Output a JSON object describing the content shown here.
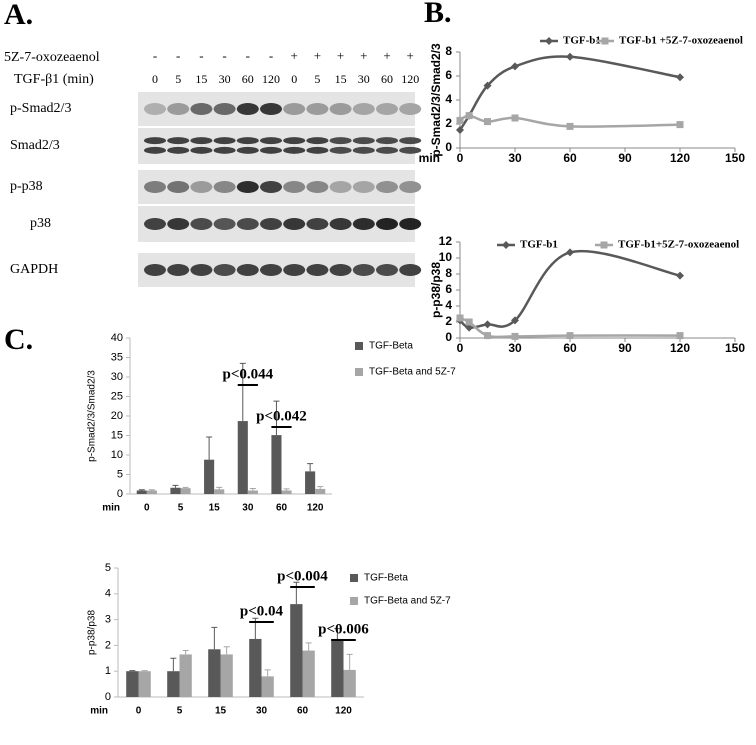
{
  "panels": {
    "a": "A.",
    "b": "B.",
    "c": "C."
  },
  "blot": {
    "treatment_label": "5Z-7-oxozeaenol",
    "treatment_signs": [
      "-",
      "-",
      "-",
      "-",
      "-",
      "-",
      "+",
      "+",
      "+",
      "+",
      "+",
      "+"
    ],
    "time_label": "TGF-β1 (min)",
    "times": [
      0,
      5,
      15,
      30,
      60,
      120,
      0,
      5,
      15,
      30,
      60,
      120
    ],
    "proteins": [
      "p-Smad2/3",
      "Smad2/3",
      "p-p38",
      "p38",
      "GAPDH"
    ]
  },
  "chart_data": [
    {
      "type": "line",
      "y_label": "p-Smad2/3/Smad2/3",
      "x_label": "min",
      "x": [
        0,
        5,
        15,
        30,
        60,
        120
      ],
      "series": [
        {
          "name": "TGF-b1",
          "color": "#595959",
          "marker": "diamond",
          "values": [
            1.5,
            2.7,
            5.2,
            6.8,
            7.6,
            5.9
          ]
        },
        {
          "name": "TGF-b1 +5Z-7-oxozeaenol",
          "color": "#a6a6a6",
          "marker": "square",
          "values": [
            2.3,
            2.7,
            2.2,
            2.5,
            1.8,
            1.95
          ]
        }
      ],
      "xlim": [
        0,
        150
      ],
      "xticks": [
        0,
        30,
        60,
        90,
        120,
        150
      ],
      "ylim": [
        0,
        8
      ],
      "yticks": [
        0,
        2,
        4,
        6,
        8
      ]
    },
    {
      "type": "line",
      "y_label": "p-p38/p38",
      "x": [
        0,
        5,
        15,
        30,
        60,
        120
      ],
      "series": [
        {
          "name": "TGF-b1",
          "color": "#595959",
          "marker": "diamond",
          "values": [
            2.2,
            1.3,
            1.7,
            2.2,
            10.7,
            7.8
          ]
        },
        {
          "name": "TGF-b1+5Z-7-oxozeaenol",
          "color": "#a6a6a6",
          "marker": "square",
          "values": [
            2.5,
            2,
            0.3,
            0.2,
            0.3,
            0.3
          ]
        }
      ],
      "xlim": [
        0,
        150
      ],
      "xticks": [
        0,
        30,
        60,
        90,
        120,
        150
      ],
      "ylim": [
        0,
        12
      ],
      "yticks": [
        0,
        2,
        4,
        6,
        8,
        10,
        12
      ]
    },
    {
      "type": "bar",
      "y_label": "p-Smad2/3/Smad2/3",
      "x_label": "min",
      "categories": [
        0,
        5,
        15,
        30,
        60,
        120
      ],
      "series": [
        {
          "name": "TGF-Beta",
          "color": "#595959",
          "values": [
            0.9,
            1.6,
            8.8,
            18.7,
            15.1,
            5.8
          ],
          "errors": [
            0.2,
            0.6,
            5.8,
            14.8,
            8.7,
            2.0
          ]
        },
        {
          "name": "TGF-Beta and 5Z-7",
          "color": "#a6a6a6",
          "values": [
            0.9,
            1.5,
            1.2,
            0.9,
            0.9,
            1.3
          ],
          "errors": [
            0.2,
            0.2,
            0.5,
            0.5,
            0.4,
            0.6
          ]
        }
      ],
      "ylim": [
        0,
        40
      ],
      "yticks": [
        0,
        5,
        10,
        15,
        20,
        25,
        30,
        35,
        40
      ],
      "annotations": [
        "p<0.044",
        "p<0.042"
      ]
    },
    {
      "type": "bar",
      "y_label": "p-p38/p38",
      "x_label": "min",
      "categories": [
        0,
        5,
        15,
        30,
        60,
        120
      ],
      "series": [
        {
          "name": "TGF-Beta",
          "color": "#595959",
          "values": [
            1.0,
            1.0,
            1.85,
            2.25,
            3.6,
            2.25
          ],
          "errors": [
            0.02,
            0.5,
            0.85,
            0.8,
            0.85,
            0.4
          ]
        },
        {
          "name": "TGF-Beta and 5Z-7",
          "color": "#a6a6a6",
          "values": [
            1.0,
            1.65,
            1.65,
            0.8,
            1.8,
            1.05
          ],
          "errors": [
            0.02,
            0.15,
            0.3,
            0.25,
            0.3,
            0.6
          ]
        }
      ],
      "ylim": [
        0,
        5
      ],
      "yticks": [
        0,
        1,
        2,
        3,
        4,
        5
      ],
      "annotations": [
        "p<0.04",
        "p<0.004",
        "p<0.006"
      ]
    }
  ]
}
